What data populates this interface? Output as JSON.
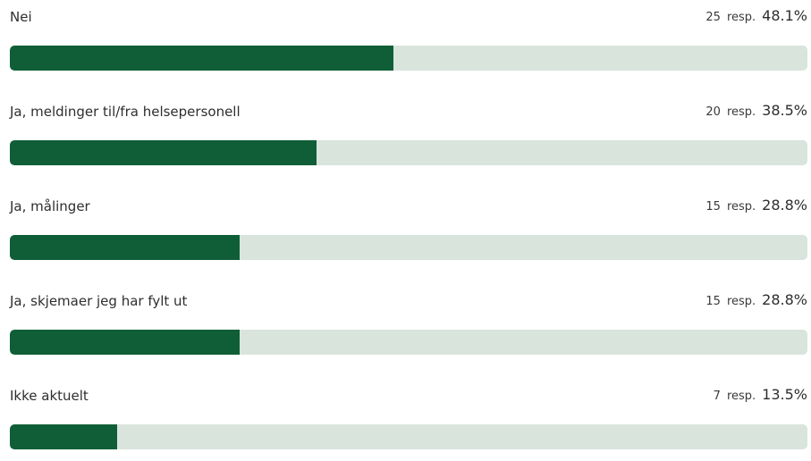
{
  "colors": {
    "bar_fill": "#0f5e37",
    "bar_track": "#d9e4dd",
    "text": "#2e2e2e"
  },
  "chart_data": {
    "type": "bar",
    "orientation": "horizontal",
    "resp_suffix": "resp.",
    "categories": [
      "Nei",
      "Ja, meldinger til/fra helsepersonell",
      "Ja, målinger",
      "Ja, skjemaer jeg har fylt ut",
      "Ikke aktuelt"
    ],
    "counts": [
      25,
      20,
      15,
      15,
      7
    ],
    "percent_labels": [
      "48.1%",
      "38.5%",
      "28.8%",
      "28.8%",
      "13.5%"
    ],
    "values": [
      48.1,
      38.5,
      28.8,
      28.8,
      13.5
    ],
    "xlim": [
      0,
      100
    ]
  }
}
